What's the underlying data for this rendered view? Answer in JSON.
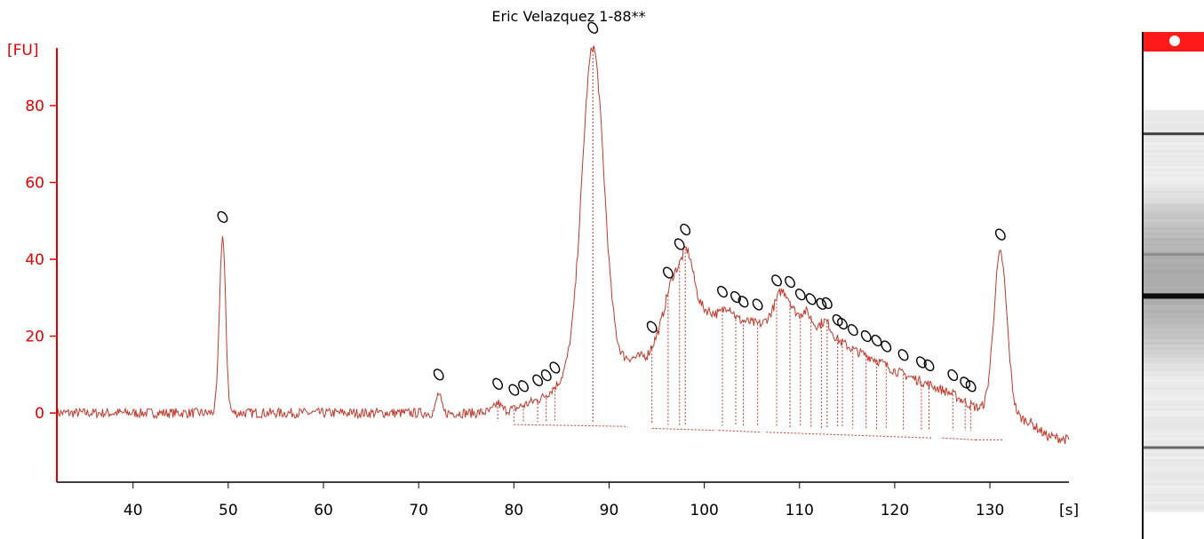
{
  "colors": {
    "axis": "#e00000",
    "trace": "#c0392b",
    "text": "#000000",
    "marker": "#ff1a1a"
  },
  "chart_data": {
    "type": "line",
    "title": "Eric Velazquez 1-88**",
    "ylabel": "[FU]",
    "xlabel": "[s]",
    "xlim": [
      32,
      138.3
    ],
    "ylim": [
      -18,
      95
    ],
    "xticks": [
      40,
      50,
      60,
      70,
      80,
      90,
      100,
      110,
      120,
      130
    ],
    "yticks": [
      0,
      20,
      40,
      60,
      80
    ],
    "baseline": 0,
    "peaks": [
      {
        "x": 49.4,
        "h": 46,
        "w": 0.32
      },
      {
        "x": 72.1,
        "h": 5,
        "w": 0.25
      },
      {
        "x": 78.3,
        "h": 2,
        "w": 0.3
      },
      {
        "x": 88.3,
        "h": 85,
        "w": 1.15
      },
      {
        "x": 96.8,
        "h": 9,
        "w": 0.8
      },
      {
        "x": 98.3,
        "h": 10,
        "w": 0.6
      },
      {
        "x": 102.5,
        "h": 3,
        "w": 0.5
      },
      {
        "x": 108.3,
        "h": 6,
        "w": 0.8
      },
      {
        "x": 110.7,
        "h": 3,
        "w": 0.5
      },
      {
        "x": 112.8,
        "h": 3,
        "w": 0.5
      },
      {
        "x": 131.1,
        "h": 42,
        "w": 0.7
      }
    ],
    "envelope": [
      [
        76,
        0
      ],
      [
        80,
        1
      ],
      [
        83,
        4
      ],
      [
        85.5,
        9
      ],
      [
        90,
        11
      ],
      [
        92,
        14
      ],
      [
        94,
        15
      ],
      [
        96,
        24
      ],
      [
        98,
        31
      ],
      [
        100,
        27
      ],
      [
        102,
        25
      ],
      [
        104,
        24
      ],
      [
        106,
        23
      ],
      [
        108,
        26
      ],
      [
        110,
        24
      ],
      [
        112,
        22
      ],
      [
        114,
        19
      ],
      [
        116,
        16
      ],
      [
        118,
        14
      ],
      [
        120,
        11
      ],
      [
        122,
        9
      ],
      [
        124,
        7
      ],
      [
        126,
        5
      ],
      [
        128,
        2
      ],
      [
        130,
        0
      ],
      [
        134,
        -2
      ],
      [
        136,
        -6
      ],
      [
        138.3,
        -7
      ]
    ],
    "markers": [
      49.4,
      72.1,
      78.3,
      80.0,
      81.0,
      82.5,
      83.4,
      84.3,
      88.3,
      94.5,
      96.2,
      97.4,
      98.0,
      101.9,
      103.3,
      104.1,
      105.6,
      107.6,
      109.0,
      110.1,
      111.2,
      112.3,
      112.9,
      114.0,
      114.5,
      115.6,
      117.0,
      118.1,
      119.1,
      120.9,
      122.8,
      123.6,
      126.1,
      127.4,
      128.0,
      131.1
    ],
    "gel_bands": [
      {
        "pos": 0.06,
        "intensity": 0.75
      },
      {
        "pos": 0.36,
        "intensity": 0.45
      },
      {
        "pos": 0.46,
        "intensity": 0.95
      },
      {
        "pos": 0.84,
        "intensity": 0.6
      }
    ]
  }
}
